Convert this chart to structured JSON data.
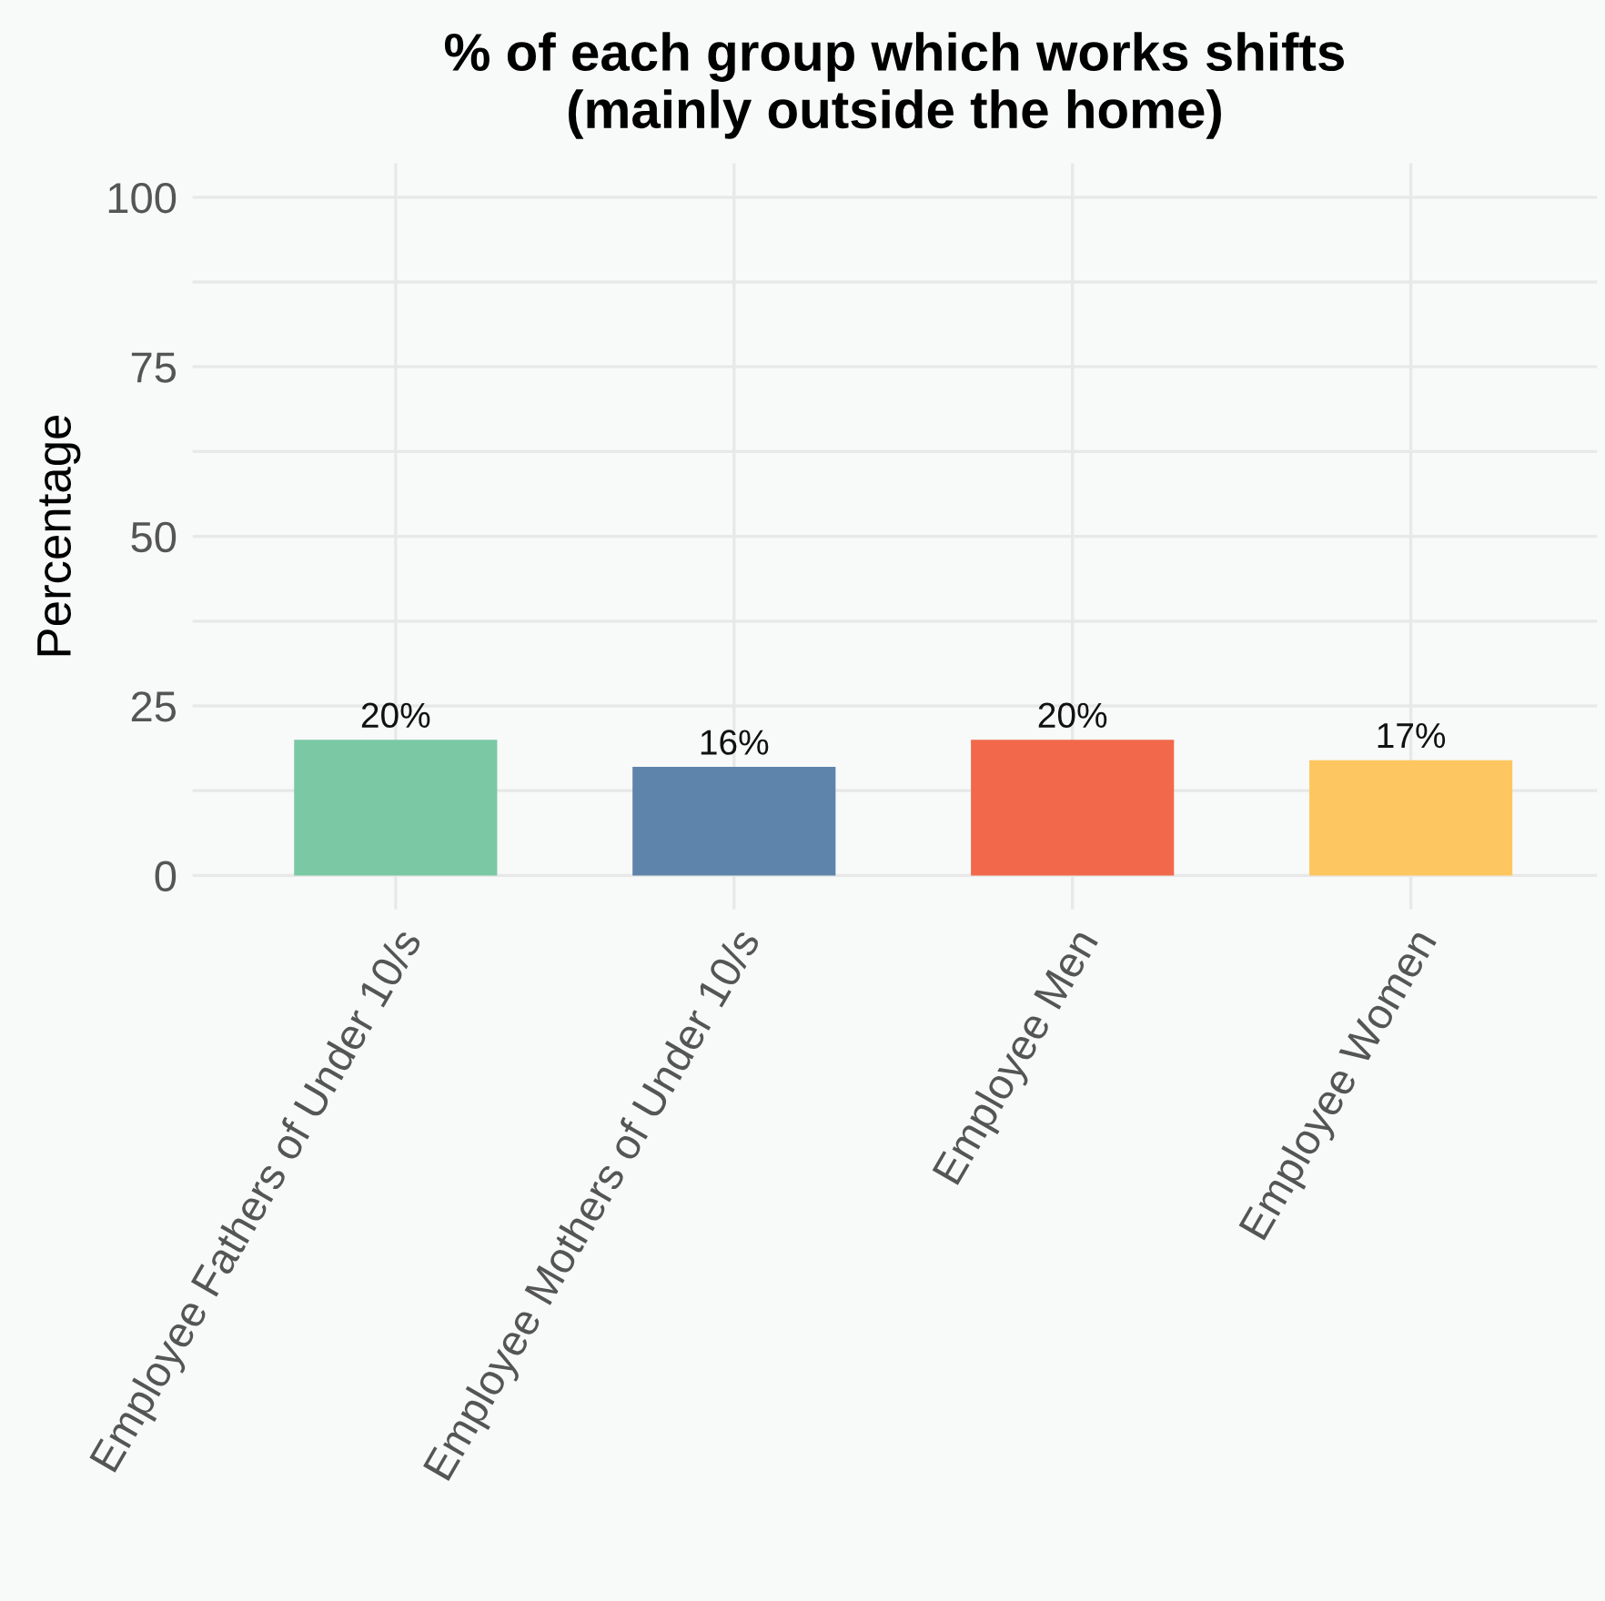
{
  "chart_data": {
    "type": "bar",
    "title": "% of each group which works shifts\n(mainly outside the home)",
    "ylabel": "Percentage",
    "categories": [
      "Employee Fathers of Under 10/s",
      "Employee Mothers of Under 10/s",
      "Employee Men",
      "Employee Women"
    ],
    "values": [
      20,
      16,
      20,
      17
    ],
    "colors": [
      "#7bc8a4",
      "#5e84ab",
      "#f1694a",
      "#fec660"
    ],
    "value_labels": [
      "20%",
      "16%",
      "20%",
      "17%"
    ],
    "ylim": [
      -5,
      105
    ],
    "yticks": [
      0,
      25,
      50,
      75,
      100
    ],
    "grid": true
  }
}
